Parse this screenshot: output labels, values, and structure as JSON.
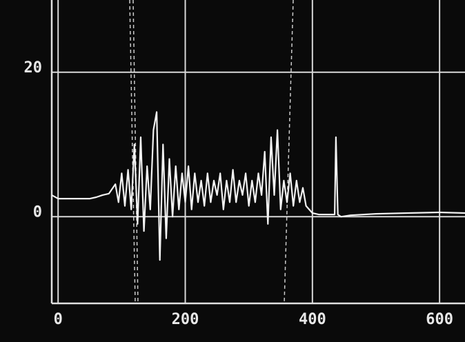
{
  "chart_data": {
    "type": "line",
    "x": [
      -10,
      0,
      10,
      20,
      30,
      40,
      50,
      60,
      70,
      80,
      90,
      95,
      100,
      105,
      110,
      115,
      120,
      125,
      130,
      135,
      140,
      145,
      150,
      155,
      160,
      165,
      170,
      175,
      180,
      185,
      190,
      195,
      200,
      205,
      210,
      215,
      220,
      225,
      230,
      235,
      240,
      245,
      250,
      255,
      260,
      265,
      270,
      275,
      280,
      285,
      290,
      295,
      300,
      305,
      310,
      315,
      320,
      325,
      330,
      335,
      340,
      345,
      350,
      355,
      360,
      365,
      370,
      375,
      380,
      385,
      390,
      400,
      410,
      420,
      430,
      435,
      437,
      440,
      445,
      460,
      500,
      550,
      600,
      640
    ],
    "series": [
      {
        "color": "#f2f2f2",
        "values": [
          3,
          2.5,
          2.5,
          2.5,
          2.5,
          2.5,
          2.5,
          2.7,
          3,
          3.2,
          4.5,
          2,
          6,
          1.5,
          6.5,
          1,
          10,
          -1,
          11,
          -2,
          7,
          1,
          12,
          14.5,
          -6,
          10,
          -3,
          8,
          0,
          7,
          1,
          6,
          2,
          7,
          1,
          6,
          2,
          5,
          1.5,
          6,
          2,
          5,
          3,
          6,
          1,
          5,
          2,
          6.5,
          2,
          5,
          3,
          6,
          1.5,
          5,
          2,
          6,
          3,
          9,
          -1,
          11,
          3,
          12,
          1,
          5,
          2,
          6,
          1.5,
          5,
          2,
          4,
          1.5,
          0.5,
          0.3,
          0.3,
          0.3,
          0.3,
          11,
          0.3,
          0,
          0.2,
          0.4,
          0.5,
          0.6,
          0.5
        ]
      }
    ],
    "xlim": [
      -10,
      640
    ],
    "ylim": [
      -12,
      30
    ],
    "xticks": [
      0,
      200,
      400,
      600
    ],
    "yticks": [
      0,
      20
    ],
    "grid": true
  }
}
